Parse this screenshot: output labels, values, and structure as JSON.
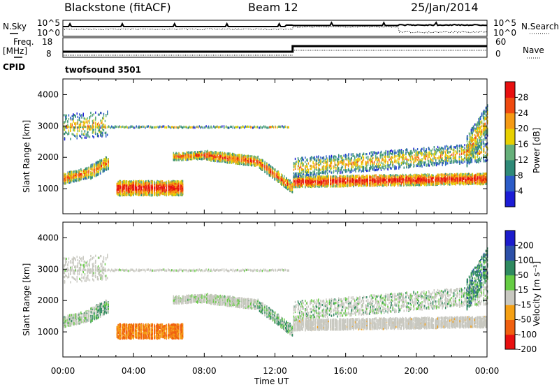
{
  "header": {
    "title": "Blackstone (fitACF)",
    "beam": "Beam 12",
    "date": "25/Jan/2014"
  },
  "noise_panel": {
    "left_label": "N.Sky",
    "right_label": "N.Search",
    "left_ticks": [
      "10^5",
      "10^0"
    ],
    "right_ticks": [
      "10^5",
      "10^0"
    ]
  },
  "freq_panel": {
    "left_label_1": "Freq.",
    "left_label_2": "[MHz]",
    "right_label": "Nave",
    "left_ticks": [
      "18",
      "8"
    ],
    "right_ticks": [
      "60",
      "0"
    ],
    "cpid_label": "CPID",
    "cpid_name": "twofsound 3501"
  },
  "chart_data": [
    {
      "type": "heatmap",
      "name": "power",
      "ylabel": "Slant Range [km]",
      "ylim": [
        200,
        4500
      ],
      "yticks": [
        1000,
        2000,
        3000,
        4000
      ],
      "colorbar_label": "Power [dB]",
      "colorbar_ticks": [
        "28",
        "24",
        "20",
        "16",
        "12",
        "8",
        "4"
      ],
      "colorbar_range": [
        0,
        32
      ],
      "colors": [
        "#1c1cd6",
        "#2c5cc8",
        "#2f8a78",
        "#66b07a",
        "#e8d000",
        "#f59a14",
        "#ef4a10",
        "#e81010"
      ]
    },
    {
      "type": "heatmap",
      "name": "velocity",
      "ylabel": "Slant Range [km]",
      "ylim": [
        200,
        4500
      ],
      "yticks": [
        1000,
        2000,
        3000,
        4000
      ],
      "colorbar_label": "Velocity [m s⁻¹]",
      "colorbar_ticks": [
        "200",
        "100",
        "50",
        "15",
        "-15",
        "-50",
        "-100",
        "-200"
      ],
      "colors": [
        "#1c1ccc",
        "#2c50a8",
        "#2f8a60",
        "#66cc44",
        "#c8c8c0",
        "#f5a014",
        "#f06010",
        "#e81010"
      ]
    }
  ],
  "xaxis": {
    "label": "Time UT",
    "ticks": [
      "00:00",
      "04:00",
      "08:00",
      "12:00",
      "16:00",
      "20:00",
      "00:00"
    ]
  }
}
